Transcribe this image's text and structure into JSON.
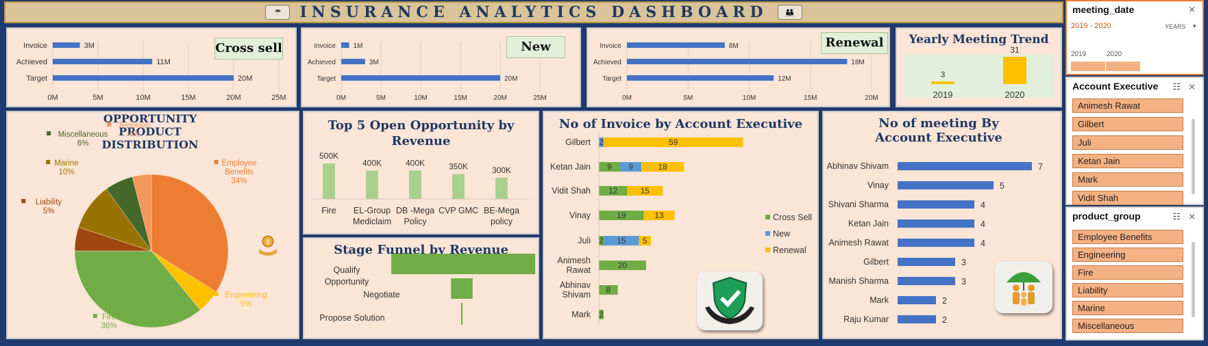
{
  "dashboard": {
    "title": "INSURANCE ANALYTICS DASHBOARD",
    "colors": {
      "cross_sell": "#70ad47",
      "new": "#5b9bd5",
      "renewal": "#ffc000",
      "bar_blue": "#4472c4",
      "orange": "#ed7d31"
    }
  },
  "chart_data": [
    {
      "id": "cross-sell",
      "type": "bar",
      "orientation": "horizontal",
      "title": "Cross sell",
      "categories": [
        "Invoice",
        "Achieved",
        "Target"
      ],
      "values": [
        3,
        11,
        20
      ],
      "labels": [
        "3M",
        "11M",
        "20M"
      ],
      "xlim": [
        0,
        25
      ],
      "xticks": [
        "0M",
        "5M",
        "10M",
        "15M",
        "20M",
        "25M"
      ]
    },
    {
      "id": "new",
      "type": "bar",
      "orientation": "horizontal",
      "title": "New",
      "categories": [
        "Invoice",
        "Achieved",
        "Target"
      ],
      "values": [
        1,
        3,
        20
      ],
      "labels": [
        "1M",
        "3M",
        "20M"
      ],
      "xlim": [
        0,
        25
      ],
      "xticks": [
        "0M",
        "5M",
        "10M",
        "15M",
        "20M",
        "25M"
      ]
    },
    {
      "id": "renewal",
      "type": "bar",
      "orientation": "horizontal",
      "title": "Renewal",
      "categories": [
        "Invoice",
        "Achieved",
        "Target"
      ],
      "values": [
        8,
        18,
        12
      ],
      "labels": [
        "8M",
        "18M",
        "12M"
      ],
      "xlim": [
        0,
        20
      ],
      "xticks": [
        "0M",
        "5M",
        "10M",
        "15M",
        "20M"
      ]
    },
    {
      "id": "yearly-meeting-trend",
      "type": "bar",
      "title": "Yearly Meeting Trend",
      "categories": [
        "2019",
        "2020"
      ],
      "values": [
        3,
        31
      ],
      "grid": false
    },
    {
      "id": "opportunity-product-distribution",
      "type": "pie",
      "title": "OPPORTUNITY PRODUCT DISTRIBUTION",
      "slices": [
        {
          "name": "Employee Benefits",
          "value": 34,
          "label": "34%",
          "color": "#ed7d31"
        },
        {
          "name": "Engineering",
          "value": 5,
          "label": "5%",
          "color": "#ffc000"
        },
        {
          "name": "Fire",
          "value": 36,
          "label": "36%",
          "color": "#70ad47"
        },
        {
          "name": "Liability",
          "value": 5,
          "label": "5%",
          "color": "#9e480e"
        },
        {
          "name": "Marine",
          "value": 10,
          "label": "10%",
          "color": "#997300"
        },
        {
          "name": "Miscellaneous",
          "value": 6,
          "label": "6%",
          "color": "#43682b"
        },
        {
          "name": "Terrorism",
          "value": 4,
          "label": "4%",
          "color": "#f4975a"
        }
      ]
    },
    {
      "id": "top5-open-opportunity",
      "type": "bar",
      "title": "Top 5 Open Opportunity by Revenue",
      "categories": [
        "Fire",
        "EL-Group Mediclaim",
        "DB -Mega Policy",
        "CVP GMC",
        "BE-Mega policy"
      ],
      "category_lines": [
        [
          "Fire"
        ],
        [
          "EL-Group",
          "Mediclaim"
        ],
        [
          "DB -Mega",
          "Policy"
        ],
        [
          "CVP GMC"
        ],
        [
          "BE-Mega",
          "policy"
        ]
      ],
      "values": [
        500000,
        400000,
        400000,
        350000,
        300000
      ],
      "labels": [
        "500K",
        "400K",
        "400K",
        "350K",
        "300K"
      ]
    },
    {
      "id": "stage-funnel",
      "type": "bar",
      "orientation": "horizontal",
      "title": "Stage Funnel by Revenue",
      "categories": [
        "Qualify Opportunity",
        "Negotiate",
        "Propose Solution"
      ],
      "category_lines": [
        [
          "Qualify",
          "Opportunity"
        ],
        [
          "Negotiate"
        ],
        [
          "Propose Solution"
        ]
      ],
      "relative_values": [
        100,
        15,
        1
      ]
    },
    {
      "id": "invoice-by-account-executive",
      "type": "bar",
      "orientation": "horizontal",
      "stacked": true,
      "title": "No of Invoice by Account Executive",
      "categories": [
        "Gilbert",
        "Ketan Jain",
        "Vidit Shah",
        "Vinay",
        "Juli",
        "Animesh Rawat",
        "Abhinav Shivam",
        "Mark"
      ],
      "category_lines": [
        [
          "Gilbert"
        ],
        [
          "Ketan Jain"
        ],
        [
          "Vidit Shah"
        ],
        [
          "Vinay"
        ],
        [
          "Juli"
        ],
        [
          "Animesh",
          "Rawat"
        ],
        [
          "Abhinav",
          "Shivam"
        ],
        [
          "Mark"
        ]
      ],
      "series": [
        {
          "name": "Cross Sell",
          "values": [
            0,
            9,
            12,
            19,
            2,
            20,
            8,
            2
          ]
        },
        {
          "name": "New",
          "values": [
            2,
            9,
            0,
            0,
            15,
            0,
            0,
            0
          ]
        },
        {
          "name": "Renewal",
          "values": [
            59,
            18,
            15,
            13,
            5,
            0,
            0,
            0
          ]
        }
      ],
      "legend": "right"
    },
    {
      "id": "meetings-by-account-executive",
      "type": "bar",
      "orientation": "horizontal",
      "title": "No of meeting By Account Executive",
      "categories": [
        "Abhinav Shivam",
        "Vinay",
        "Shivani Sharma",
        "Ketan Jain",
        "Animesh Rawat",
        "Gilbert",
        "Manish Sharma",
        "Mark",
        "Raju Kumar"
      ],
      "values": [
        7,
        5,
        4,
        4,
        4,
        3,
        3,
        2,
        2
      ]
    }
  ],
  "slicers": {
    "meeting_date": {
      "title": "meeting_date",
      "selected": "2019 - 2020",
      "level": "YEARS",
      "years": [
        "2019",
        "2020"
      ]
    },
    "account_executive": {
      "title": "Account Executive",
      "items": [
        "Animesh Rawat",
        "Gilbert",
        "Juli",
        "Ketan Jain",
        "Mark",
        "Vidit Shah"
      ]
    },
    "product_group": {
      "title": "product_group",
      "items": [
        "Employee Benefits",
        "Engineering",
        "Fire",
        "Liability",
        "Marine",
        "Miscellaneous"
      ]
    }
  },
  "icons": [
    "umbrella-icon",
    "coin-hand-icon",
    "shield-check-icon",
    "family-umbrella-icon",
    "funnel-clear-icon",
    "multi-select-icon"
  ]
}
